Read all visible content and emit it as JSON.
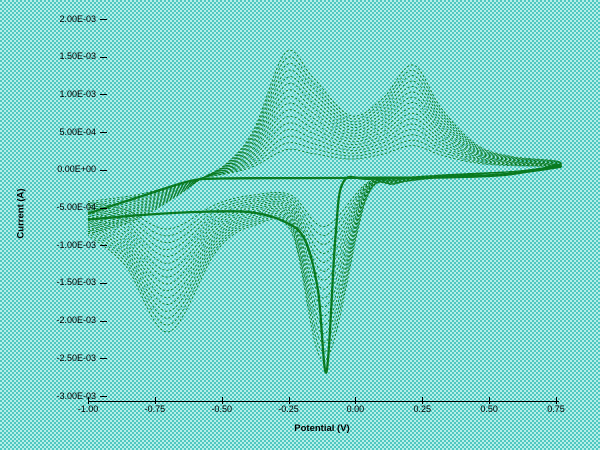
{
  "chart_data": {
    "type": "line",
    "title": "",
    "xlabel": "Potential (V)",
    "ylabel": "Current (A)",
    "grid": false,
    "legend": null,
    "xlim": [
      -1.0,
      0.75
    ],
    "ylim": [
      -0.003,
      0.002
    ],
    "x_tick_labels": [
      "-1.00",
      "-0.75",
      "-0.50",
      "-0.25",
      "0.00",
      "0.25",
      "0.50",
      "0.75"
    ],
    "x_tick_values": [
      -1.0,
      -0.75,
      -0.5,
      -0.25,
      0.0,
      0.25,
      0.5,
      0.75
    ],
    "y_tick_labels": [
      "2.00E-03",
      "1.50E-03",
      "1.00E-03",
      "5.00E-04",
      "0.00E+00",
      "-5.00E-04",
      "-1.00E-03",
      "-1.50E-03",
      "-2.00E-03",
      "-2.50E-03",
      "-3.00E-03"
    ],
    "y_tick_values": [
      0.002,
      0.0015,
      0.001,
      0.0005,
      0.0,
      -0.0005,
      -0.001,
      -0.0015,
      -0.002,
      -0.0025,
      -0.003
    ],
    "curve_color": "#0a7a20",
    "features": {
      "technique": "multi-cycle cyclic voltammetry, peak currents grow with each cycle",
      "scan_range_V": [
        -1.0,
        0.75
      ],
      "num_cycles_visible": 17,
      "anodic_peak_1": {
        "potential_V": -0.26,
        "max_current_A": 0.00156
      },
      "anodic_peak_2": {
        "potential_V": 0.21,
        "max_current_A": 0.00139
      },
      "cathodic_peak_1": {
        "potential_V": -0.11,
        "max_current_A": -0.00268
      },
      "cathodic_peak_2": {
        "potential_V": -0.7,
        "max_current_A": -0.00215
      },
      "crossover_point": {
        "potential_V": -0.575,
        "current_A": -0.000105
      },
      "bold_first_cycle": "flat forward plateau near -1.0E-04 A with sharp deep cathodic nucleation spike on reverse sweep"
    },
    "curves": {
      "comment": "Thin cycles: I(mA) = I0 + Ia*g, g grows per cycle. Points are [V, I0, Ia].",
      "n_cycles": 16,
      "g_min": 0.22,
      "g_max": 1.0,
      "current_unit": "mA",
      "forward": [
        [
          -1.0,
          -0.3,
          -0.55
        ],
        [
          -0.82,
          -0.24,
          -0.42
        ],
        [
          -0.66,
          -0.15,
          -0.18
        ],
        [
          -0.575,
          -0.105,
          -0.01
        ],
        [
          -0.48,
          -0.09,
          0.18
        ],
        [
          -0.38,
          -0.09,
          0.62
        ],
        [
          -0.26,
          -0.1,
          1.66
        ],
        [
          -0.16,
          -0.07,
          1.3
        ],
        [
          -0.02,
          -0.02,
          0.74
        ],
        [
          0.1,
          0.0,
          0.94
        ],
        [
          0.215,
          0.02,
          1.37
        ],
        [
          0.32,
          0.02,
          0.8
        ],
        [
          0.45,
          0.02,
          0.32
        ],
        [
          0.58,
          0.02,
          0.16
        ],
        [
          0.75,
          0.02,
          0.1
        ]
      ],
      "reverse": [
        [
          0.75,
          0.01,
          0.05
        ],
        [
          0.6,
          -0.02,
          0.0
        ],
        [
          0.45,
          -0.04,
          -0.02
        ],
        [
          0.3,
          -0.06,
          -0.05
        ],
        [
          0.15,
          -0.09,
          -0.1
        ],
        [
          0.04,
          -0.12,
          -0.28
        ],
        [
          -0.115,
          -0.25,
          -2.28
        ],
        [
          -0.24,
          -0.2,
          -0.62
        ],
        [
          -0.38,
          -0.22,
          -0.52
        ],
        [
          -0.52,
          -0.28,
          -0.8
        ],
        [
          -0.7,
          -0.4,
          -1.75
        ],
        [
          -0.86,
          -0.32,
          -0.95
        ],
        [
          -1.0,
          -0.31,
          -0.56
        ]
      ],
      "bold_forward": [
        [
          -1.0,
          -0.58
        ],
        [
          -0.8,
          -0.35
        ],
        [
          -0.62,
          -0.15
        ],
        [
          -0.5,
          -0.115
        ],
        [
          -0.2,
          -0.11
        ],
        [
          0.1,
          -0.105
        ],
        [
          0.35,
          -0.1
        ],
        [
          0.55,
          -0.07
        ],
        [
          0.68,
          0.0
        ],
        [
          0.75,
          0.06
        ]
      ],
      "bold_reverse": [
        [
          0.75,
          0.03
        ],
        [
          0.55,
          -0.06
        ],
        [
          0.3,
          -0.1
        ],
        [
          0.05,
          -0.12
        ],
        [
          -0.045,
          -0.16
        ],
        [
          -0.075,
          -0.9
        ],
        [
          -0.108,
          -2.68
        ],
        [
          -0.14,
          -1.6
        ],
        [
          -0.19,
          -0.92
        ],
        [
          -0.27,
          -0.68
        ],
        [
          -0.4,
          -0.56
        ],
        [
          -0.6,
          -0.56
        ],
        [
          -0.8,
          -0.6
        ],
        [
          -1.0,
          -0.66
        ]
      ]
    }
  },
  "colors": {
    "background_checker_light": "#b5eee8",
    "background_checker_dark": "#4fc8c0",
    "axis": "#000000",
    "curve": "#0a7a20"
  }
}
